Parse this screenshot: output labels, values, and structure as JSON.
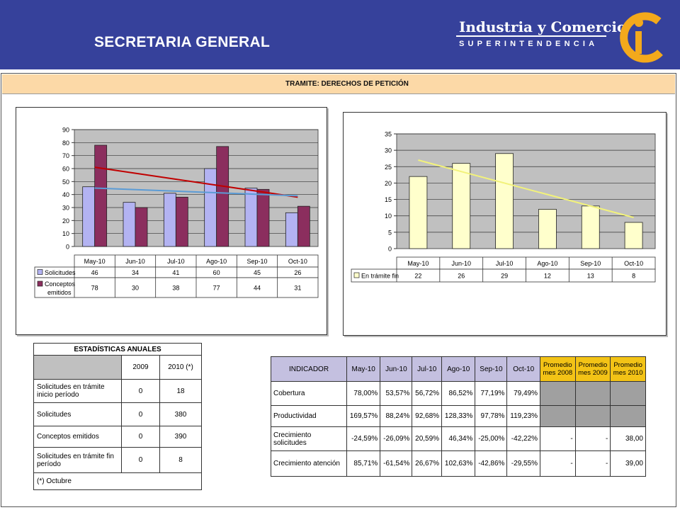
{
  "header": {
    "title": "SECRETARIA GENERAL",
    "brand_top": "Industria y Comercio",
    "brand_sub": "SUPERINTENDENCIA"
  },
  "banner": {
    "title": "TRAMITE:  DERECHOS DE PETICIÓN"
  },
  "colors": {
    "header_bg": "#36419b",
    "bar_solicitudes": "#b3b3f2",
    "bar_conceptos": "#8b2e5e",
    "bar_tramite": "#ffffcc",
    "plot_bg": "#c0c0c0",
    "trend_red": "#c00000",
    "trend_blue": "#5b9bd5",
    "trend_yellow": "#f2f27a"
  },
  "chart_data": [
    {
      "type": "bar",
      "categories": [
        "May-10",
        "Jun-10",
        "Jul-10",
        "Ago-10",
        "Sep-10",
        "Oct-10"
      ],
      "ylim": [
        0,
        90
      ],
      "yticks": [
        "0",
        "10",
        "20",
        "30",
        "40",
        "50",
        "60",
        "70",
        "80",
        "90"
      ],
      "series": [
        {
          "name": "Solicitudes",
          "values": [
            46,
            34,
            41,
            60,
            45,
            26
          ]
        },
        {
          "name": "Conceptos emitidos",
          "values": [
            78,
            30,
            38,
            77,
            44,
            31
          ]
        }
      ],
      "trendlines": [
        {
          "series": "Conceptos emitidos",
          "from": 61,
          "to": 38
        },
        {
          "series": "Solicitudes",
          "from": 45,
          "to": 39
        }
      ],
      "legend_rows": [
        {
          "label": "Solicitudes",
          "values": [
            "46",
            "34",
            "41",
            "60",
            "45",
            "26"
          ]
        },
        {
          "label_lines": [
            "Conceptos",
            "emitidos"
          ],
          "values": [
            "78",
            "30",
            "38",
            "77",
            "44",
            "31"
          ]
        }
      ]
    },
    {
      "type": "bar",
      "categories": [
        "May-10",
        "Jun-10",
        "Jul-10",
        "Ago-10",
        "Sep-10",
        "Oct-10"
      ],
      "ylim": [
        0,
        35
      ],
      "yticks": [
        "0",
        "5",
        "10",
        "15",
        "20",
        "25",
        "30",
        "35"
      ],
      "series": [
        {
          "name": "En trámite fin",
          "values": [
            22,
            26,
            29,
            12,
            13,
            8
          ]
        }
      ],
      "trendlines": [
        {
          "series": "En trámite fin",
          "from": 27,
          "to": 9.5
        }
      ],
      "legend_rows": [
        {
          "label": "En trámite fin",
          "values": [
            "22",
            "26",
            "29",
            "12",
            "13",
            "8"
          ]
        }
      ]
    }
  ],
  "annual": {
    "title": "ESTADÍSTICAS ANUALES",
    "col_2009": "2009",
    "col_2010": "2010 (*)",
    "rows": [
      {
        "label": "Solicitudes en trámite inicio período",
        "v2009": "0",
        "v2010": "18"
      },
      {
        "label": "Solicitudes",
        "v2009": "0",
        "v2010": "380"
      },
      {
        "label": "Conceptos emitidos",
        "v2009": "0",
        "v2010": "390"
      },
      {
        "label": "Solicitudes en trámite fin período",
        "v2009": "0",
        "v2010": "8"
      }
    ],
    "note": "(*) Octubre"
  },
  "indicators": {
    "header": "INDICADOR",
    "months": [
      "May-10",
      "Jun-10",
      "Jul-10",
      "Ago-10",
      "Sep-10",
      "Oct-10"
    ],
    "avg_headers": [
      [
        "Promedio",
        "mes 2008"
      ],
      [
        "Promedio",
        "mes 2009"
      ],
      [
        "Promedio",
        "mes 2010"
      ]
    ],
    "rows": [
      {
        "label": "Cobertura",
        "values": [
          "78,00%",
          "53,57%",
          "56,72%",
          "86,52%",
          "77,19%",
          "79,49%"
        ],
        "avg": null
      },
      {
        "label": "Productividad",
        "values": [
          "169,57%",
          "88,24%",
          "92,68%",
          "128,33%",
          "97,78%",
          "119,23%"
        ],
        "avg": null
      },
      {
        "label": "Crecimiento solicitudes",
        "values": [
          "-24,59%",
          "-26,09%",
          "20,59%",
          "46,34%",
          "-25,00%",
          "-42,22%"
        ],
        "avg": [
          "-",
          "-",
          "38,00"
        ]
      },
      {
        "label": "Crecimiento atención",
        "values": [
          "85,71%",
          "-61,54%",
          "26,67%",
          "102,63%",
          "-42,86%",
          "-29,55%"
        ],
        "avg": [
          "-",
          "-",
          "39,00"
        ]
      }
    ]
  }
}
